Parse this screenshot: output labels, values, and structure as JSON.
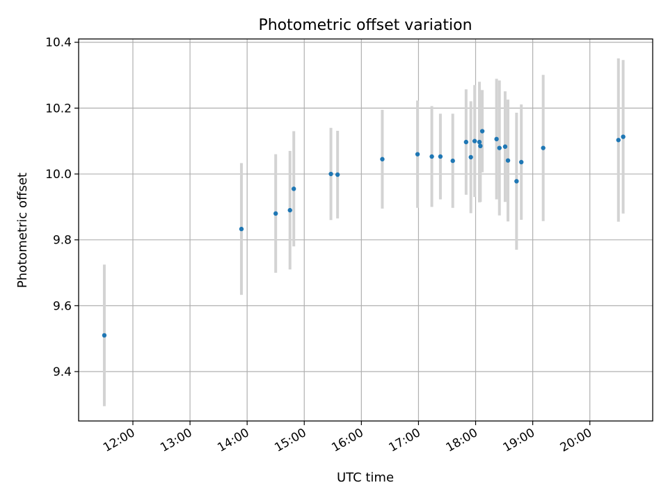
{
  "chart_data": {
    "type": "scatter",
    "title": "Photometric offset variation",
    "xlabel": "UTC time",
    "ylabel": "Photometric offset",
    "x_unit": "UTC time (HH:MM)",
    "xlim": [
      "11:03",
      "21:06"
    ],
    "ylim": [
      9.25,
      10.41
    ],
    "x_ticks": [
      "12:00",
      "13:00",
      "14:00",
      "15:00",
      "16:00",
      "17:00",
      "18:00",
      "19:00",
      "20:00"
    ],
    "y_ticks": [
      9.4,
      9.6,
      9.8,
      10.0,
      10.2,
      10.4
    ],
    "y_tick_labels": [
      "9.4",
      "9.6",
      "9.8",
      "10.0",
      "10.2",
      "10.4"
    ],
    "grid": true,
    "point_color": "#1f77b4",
    "errorbar_color": "#d3d3d3",
    "series": [
      {
        "points": [
          {
            "t": "11:30",
            "y": 9.51,
            "err": 0.215
          },
          {
            "t": "13:54",
            "y": 9.833,
            "err": 0.2
          },
          {
            "t": "14:30",
            "y": 9.88,
            "err": 0.18
          },
          {
            "t": "14:45",
            "y": 9.89,
            "err": 0.18
          },
          {
            "t": "14:49",
            "y": 9.955,
            "err": 0.175
          },
          {
            "t": "15:28",
            "y": 10.0,
            "err": 0.14
          },
          {
            "t": "15:35",
            "y": 9.998,
            "err": 0.133
          },
          {
            "t": "16:22",
            "y": 10.045,
            "err": 0.15
          },
          {
            "t": "16:59",
            "y": 10.06,
            "err": 0.163
          },
          {
            "t": "17:14",
            "y": 10.053,
            "err": 0.153
          },
          {
            "t": "17:23",
            "y": 10.053,
            "err": 0.13
          },
          {
            "t": "17:36",
            "y": 10.04,
            "err": 0.143
          },
          {
            "t": "17:50",
            "y": 10.097,
            "err": 0.16
          },
          {
            "t": "17:55",
            "y": 10.051,
            "err": 0.17
          },
          {
            "t": "17:59",
            "y": 10.1,
            "err": 0.17
          },
          {
            "t": "18:04",
            "y": 10.097,
            "err": 0.183
          },
          {
            "t": "18:05",
            "y": 10.085,
            "err": 0.17
          },
          {
            "t": "18:07",
            "y": 10.13,
            "err": 0.125
          },
          {
            "t": "18:22",
            "y": 10.106,
            "err": 0.183
          },
          {
            "t": "18:25",
            "y": 10.079,
            "err": 0.205
          },
          {
            "t": "18:31",
            "y": 10.083,
            "err": 0.168
          },
          {
            "t": "18:34",
            "y": 10.041,
            "err": 0.185
          },
          {
            "t": "18:43",
            "y": 9.978,
            "err": 0.208
          },
          {
            "t": "18:48",
            "y": 10.036,
            "err": 0.175
          },
          {
            "t": "19:11",
            "y": 10.079,
            "err": 0.222
          },
          {
            "t": "20:30",
            "y": 10.103,
            "err": 0.248
          },
          {
            "t": "20:35",
            "y": 10.113,
            "err": 0.233
          }
        ]
      }
    ]
  }
}
